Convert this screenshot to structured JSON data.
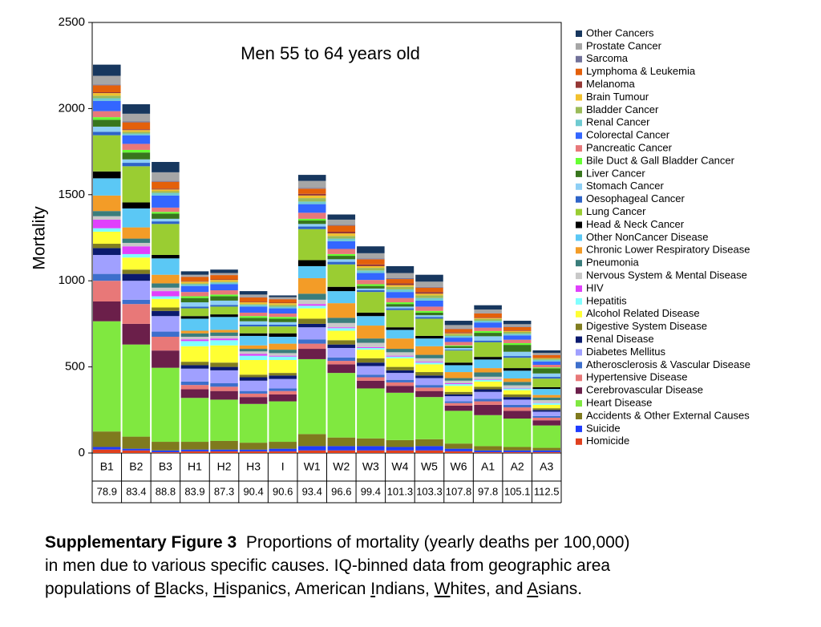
{
  "chart_data": {
    "type": "stacked_bar",
    "title": "Men 55 to 64 years old",
    "y_label": "Mortality",
    "categories": [
      "B1",
      "B2",
      "B3",
      "H1",
      "H2",
      "H3",
      "I",
      "W1",
      "W2",
      "W3",
      "W4",
      "W5",
      "W6",
      "A1",
      "A2",
      "A3"
    ],
    "x_sublabels": [
      "78.9",
      "83.4",
      "88.8",
      "83.9",
      "87.3",
      "90.4",
      "90.6",
      "93.4",
      "96.6",
      "99.4",
      "101.3",
      "103.3",
      "107.8",
      "97.8",
      "105.1",
      "112.5"
    ],
    "ylim": [
      0,
      2500
    ],
    "yticks": [
      0,
      500,
      1000,
      1500,
      2000,
      2500
    ],
    "grid": false,
    "legend": "right",
    "series": [
      {
        "name": "Homicide",
        "color": "#e0401e",
        "values": [
          20,
          15,
          5,
          10,
          10,
          10,
          10,
          15,
          15,
          15,
          15,
          15,
          10,
          5,
          5,
          5
        ]
      },
      {
        "name": "Suicide",
        "color": "#1f3cff",
        "values": [
          15,
          10,
          10,
          10,
          10,
          10,
          15,
          25,
          25,
          25,
          20,
          25,
          15,
          10,
          10,
          10
        ]
      },
      {
        "name": "Accidents & Other External Causes",
        "color": "#7f7a1e",
        "values": [
          90,
          70,
          50,
          45,
          50,
          40,
          40,
          70,
          50,
          45,
          40,
          40,
          30,
          25,
          20,
          15
        ]
      },
      {
        "name": "Heart Disease",
        "color": "#80e840",
        "values": [
          640,
          535,
          430,
          255,
          240,
          225,
          235,
          435,
          375,
          290,
          275,
          245,
          190,
          180,
          165,
          130
        ]
      },
      {
        "name": "Cerebrovascular Disease",
        "color": "#6b1f4a",
        "values": [
          115,
          120,
          100,
          50,
          50,
          40,
          40,
          60,
          50,
          45,
          40,
          35,
          30,
          60,
          45,
          30
        ]
      },
      {
        "name": "Hypertensive Disease",
        "color": "#e87878",
        "values": [
          120,
          115,
          80,
          25,
          25,
          20,
          20,
          30,
          20,
          20,
          20,
          20,
          15,
          20,
          20,
          15
        ]
      },
      {
        "name": "Atherosclerosis & Vascular Disease",
        "color": "#3d6fcc",
        "values": [
          40,
          25,
          30,
          20,
          20,
          15,
          15,
          25,
          20,
          15,
          15,
          15,
          10,
          15,
          15,
          10
        ]
      },
      {
        "name": "Diabetes Mellitus",
        "color": "#a0a0ff",
        "values": [
          110,
          110,
          90,
          75,
          75,
          60,
          55,
          70,
          55,
          50,
          40,
          40,
          30,
          40,
          30,
          25
        ]
      },
      {
        "name": "Renal Disease",
        "color": "#0a1a6e",
        "values": [
          40,
          40,
          30,
          20,
          20,
          20,
          20,
          20,
          20,
          20,
          15,
          15,
          10,
          15,
          15,
          10
        ]
      },
      {
        "name": "Digestive System Disease",
        "color": "#807d20",
        "values": [
          25,
          25,
          20,
          20,
          25,
          15,
          15,
          30,
          25,
          25,
          20,
          20,
          15,
          15,
          15,
          10
        ]
      },
      {
        "name": "Alcohol Related Disease",
        "color": "#ffff33",
        "values": [
          70,
          70,
          50,
          90,
          100,
          85,
          75,
          60,
          55,
          50,
          50,
          45,
          35,
          30,
          25,
          20
        ]
      },
      {
        "name": "Hepatitis",
        "color": "#80ffff",
        "values": [
          20,
          20,
          15,
          30,
          30,
          25,
          20,
          15,
          15,
          10,
          10,
          10,
          10,
          10,
          10,
          10
        ]
      },
      {
        "name": "HIV",
        "color": "#e040fb",
        "values": [
          50,
          45,
          30,
          10,
          10,
          10,
          5,
          10,
          5,
          5,
          5,
          5,
          5,
          3,
          3,
          2
        ]
      },
      {
        "name": "Nervous System & Mental Disease",
        "color": "#c8c8c8",
        "values": [
          20,
          20,
          20,
          15,
          15,
          15,
          15,
          25,
          25,
          25,
          20,
          20,
          15,
          15,
          15,
          15
        ]
      },
      {
        "name": "Pneumonia",
        "color": "#3a7d7b",
        "values": [
          30,
          25,
          25,
          20,
          20,
          15,
          20,
          35,
          30,
          25,
          20,
          20,
          15,
          25,
          20,
          15
        ]
      },
      {
        "name": "Chronic Lower Respiratory Disease",
        "color": "#f39c27",
        "values": [
          90,
          65,
          50,
          15,
          15,
          20,
          35,
          90,
          85,
          75,
          60,
          50,
          35,
          25,
          20,
          15
        ]
      },
      {
        "name": "Other NonCancer Disease",
        "color": "#5bc8f5",
        "values": [
          100,
          110,
          95,
          70,
          75,
          55,
          40,
          70,
          70,
          55,
          50,
          45,
          40,
          50,
          45,
          35
        ]
      },
      {
        "name": "Head & Neck Cancer",
        "color": "#000000",
        "values": [
          40,
          35,
          20,
          15,
          15,
          15,
          20,
          35,
          25,
          20,
          15,
          15,
          15,
          15,
          15,
          10
        ]
      },
      {
        "name": "Lung Cancer",
        "color": "#9acd32",
        "values": [
          210,
          210,
          180,
          45,
          45,
          40,
          40,
          180,
          130,
          120,
          100,
          100,
          70,
          85,
          60,
          50
        ]
      },
      {
        "name": "Oesophageal Cancer",
        "color": "#2e64c8",
        "values": [
          20,
          20,
          15,
          10,
          10,
          10,
          10,
          15,
          15,
          10,
          10,
          10,
          5,
          10,
          10,
          10
        ]
      },
      {
        "name": "Stomach Cancer",
        "color": "#8ecff5",
        "values": [
          30,
          20,
          15,
          25,
          25,
          20,
          15,
          15,
          15,
          10,
          10,
          10,
          10,
          25,
          25,
          20
        ]
      },
      {
        "name": "Liver Cancer",
        "color": "#38761d",
        "values": [
          40,
          40,
          30,
          25,
          25,
          20,
          20,
          20,
          20,
          15,
          15,
          15,
          10,
          20,
          40,
          30
        ]
      },
      {
        "name": "Bile Duct & Gall Bladder Cancer",
        "color": "#66ff33",
        "values": [
          15,
          15,
          10,
          10,
          10,
          10,
          10,
          10,
          10,
          10,
          10,
          10,
          5,
          10,
          10,
          5
        ]
      },
      {
        "name": "Pancreatic Cancer",
        "color": "#e8787a",
        "values": [
          35,
          35,
          25,
          25,
          25,
          20,
          20,
          35,
          30,
          25,
          25,
          25,
          20,
          20,
          20,
          15
        ]
      },
      {
        "name": "Colorectal Cancer",
        "color": "#3366ff",
        "values": [
          60,
          50,
          70,
          35,
          35,
          35,
          30,
          50,
          45,
          40,
          35,
          35,
          25,
          30,
          25,
          20
        ]
      },
      {
        "name": "Renal Cancer",
        "color": "#6fcbd1",
        "values": [
          15,
          10,
          15,
          10,
          10,
          10,
          10,
          15,
          15,
          15,
          15,
          15,
          10,
          10,
          10,
          10
        ]
      },
      {
        "name": "Bladder Cancer",
        "color": "#9bbb59",
        "values": [
          15,
          10,
          10,
          5,
          5,
          5,
          10,
          20,
          15,
          15,
          15,
          15,
          10,
          10,
          10,
          5
        ]
      },
      {
        "name": "Brain Tumour",
        "color": "#f2c12e",
        "values": [
          15,
          10,
          10,
          10,
          10,
          10,
          10,
          15,
          15,
          10,
          10,
          10,
          5,
          5,
          5,
          5
        ]
      },
      {
        "name": "Melanoma",
        "color": "#953735",
        "values": [
          5,
          5,
          5,
          3,
          3,
          3,
          3,
          10,
          10,
          10,
          10,
          10,
          5,
          3,
          3,
          2
        ]
      },
      {
        "name": "Lymphoma & Leukemia",
        "color": "#e4600a",
        "values": [
          40,
          40,
          40,
          25,
          25,
          25,
          20,
          30,
          35,
          30,
          25,
          25,
          20,
          25,
          20,
          15
        ]
      },
      {
        "name": "Sarcoma",
        "color": "#72729a",
        "values": [
          5,
          5,
          5,
          2,
          2,
          2,
          2,
          5,
          5,
          5,
          5,
          5,
          3,
          2,
          2,
          2
        ]
      },
      {
        "name": "Prostate Cancer",
        "color": "#a6a6a6",
        "values": [
          50,
          45,
          50,
          10,
          10,
          15,
          10,
          40,
          30,
          30,
          30,
          30,
          20,
          20,
          15,
          10
        ]
      },
      {
        "name": "Other Cancers",
        "color": "#17375e",
        "values": [
          65,
          55,
          60,
          20,
          20,
          20,
          10,
          35,
          30,
          40,
          40,
          40,
          25,
          25,
          20,
          15
        ]
      }
    ]
  },
  "caption": {
    "label": "Supplementary Figure 3",
    "line1": "Proportions of mortality (yearly deaths per 100,000)",
    "line2": "in men due to various specific causes.  IQ-binned data from geographic area",
    "line3": [
      "populations of ",
      "B",
      "lacks, ",
      "H",
      "ispanics, American ",
      "I",
      "ndians, ",
      "W",
      "hites, and ",
      "A",
      "sians."
    ]
  }
}
